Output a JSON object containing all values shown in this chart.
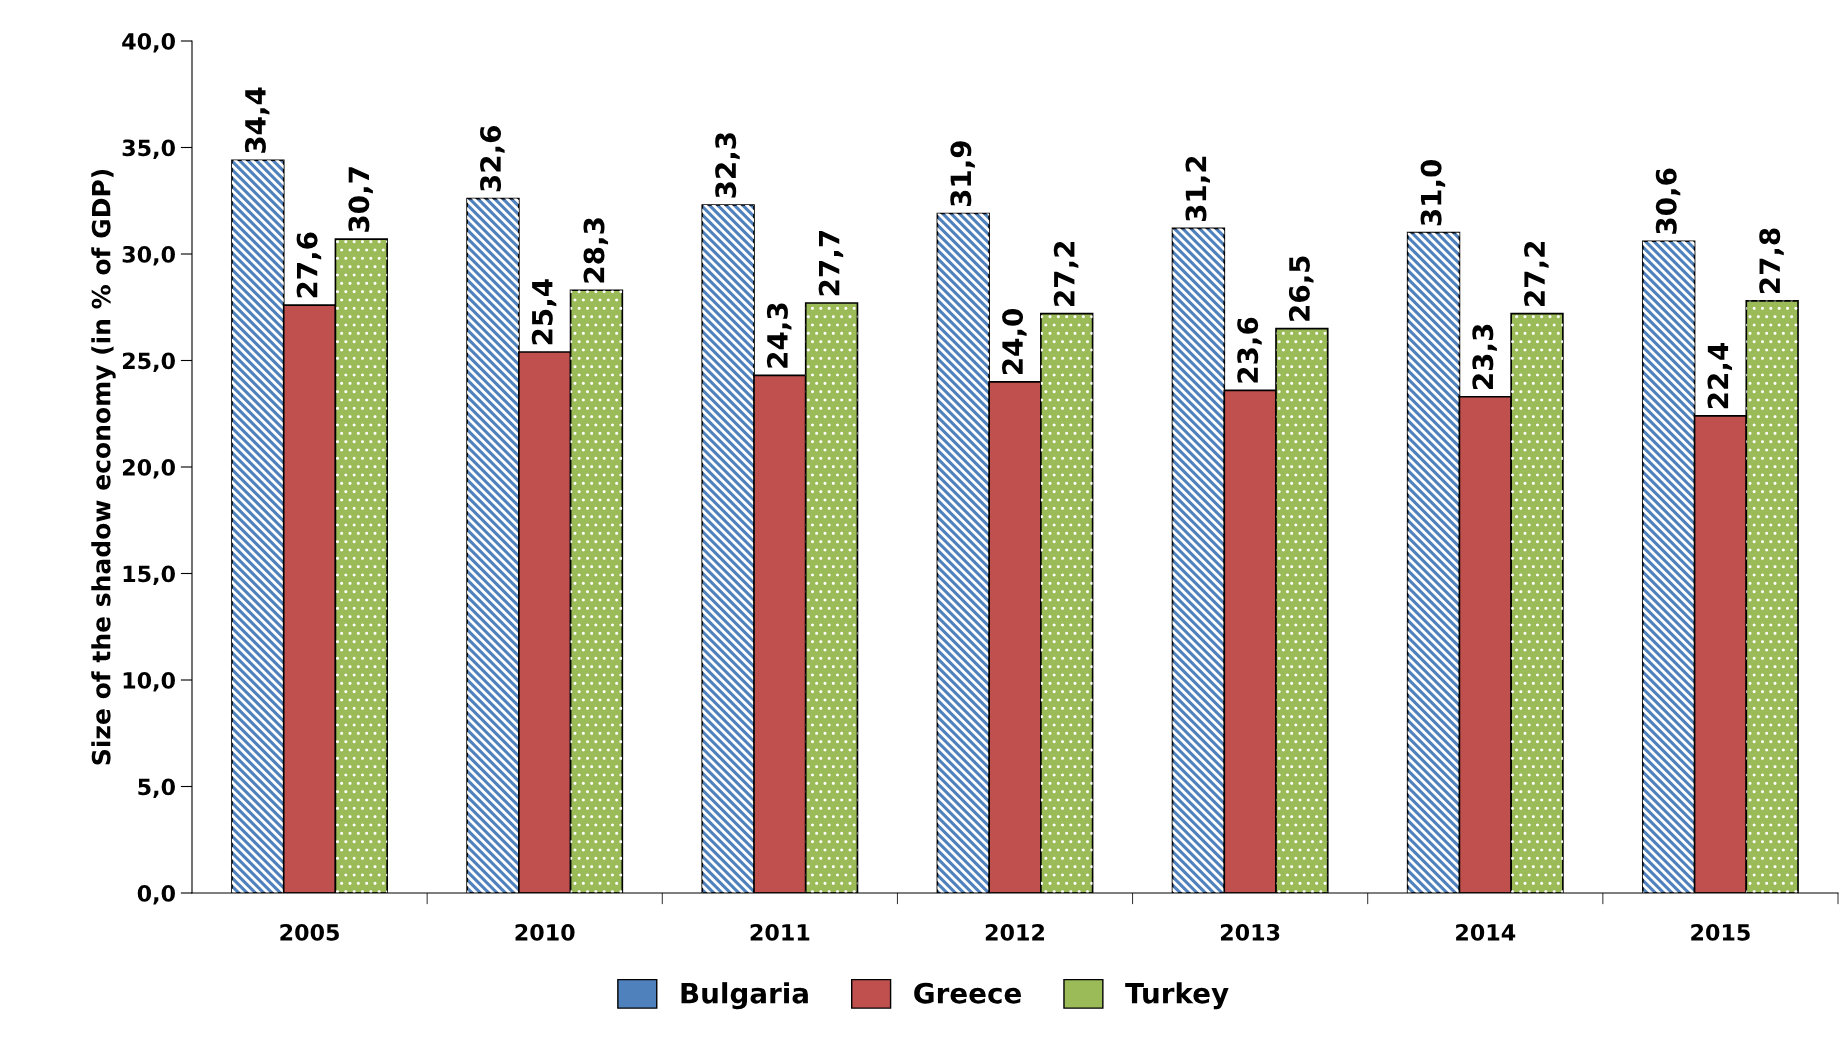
{
  "chart_data": {
    "type": "bar",
    "ylabel": "Size of the shadow economy (in % of GDP)",
    "categories": [
      "2005",
      "2010",
      "2011",
      "2012",
      "2013",
      "2014",
      "2015"
    ],
    "series": [
      {
        "name": "Bulgaria",
        "color": "#4f81bd",
        "values": [
          34.4,
          32.6,
          32.3,
          31.9,
          31.2,
          31.0,
          30.6
        ],
        "value_labels": [
          "34,4",
          "32,6",
          "32,3",
          "31,9",
          "31,2",
          "31,0",
          "30,6"
        ]
      },
      {
        "name": "Greece",
        "color": "#c0504d",
        "values": [
          27.6,
          25.4,
          24.3,
          24.0,
          23.6,
          23.3,
          22.4
        ],
        "value_labels": [
          "27,6",
          "25,4",
          "24,3",
          "24,0",
          "23,6",
          "23,3",
          "22,4"
        ]
      },
      {
        "name": "Turkey",
        "color": "#9bbb59",
        "values": [
          30.7,
          28.3,
          27.7,
          27.2,
          26.5,
          27.2,
          27.8
        ],
        "value_labels": [
          "30,7",
          "28,3",
          "27,7",
          "27,2",
          "26,5",
          "27,2",
          "27,8"
        ]
      }
    ],
    "ylim": [
      0,
      40
    ],
    "yticks": [
      {
        "value": 0,
        "label": "0,0"
      },
      {
        "value": 5,
        "label": "5,0"
      },
      {
        "value": 10,
        "label": "10,0"
      },
      {
        "value": 15,
        "label": "15,0"
      },
      {
        "value": 20,
        "label": "20,0"
      },
      {
        "value": 25,
        "label": "25,0"
      },
      {
        "value": 30,
        "label": "30,0"
      },
      {
        "value": 35,
        "label": "35,0"
      },
      {
        "value": 40,
        "label": "40,0"
      }
    ],
    "grid": false,
    "legend": "bottom"
  }
}
